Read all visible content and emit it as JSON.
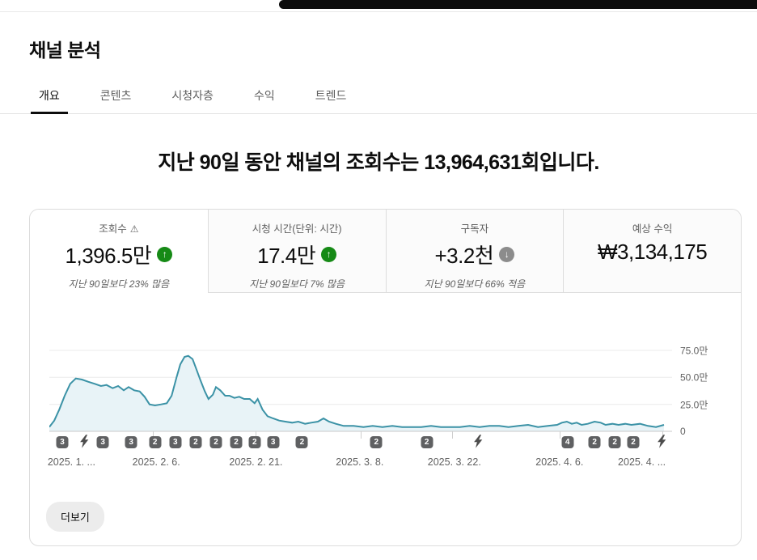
{
  "header": {
    "title": "채널 분석"
  },
  "tabs": [
    {
      "label": "개요",
      "active": true
    },
    {
      "label": "콘텐츠",
      "active": false
    },
    {
      "label": "시청자층",
      "active": false
    },
    {
      "label": "수익",
      "active": false
    },
    {
      "label": "트렌드",
      "active": false
    }
  ],
  "headline": "지난 90일 동안 채널의 조회수는 13,964,631회입니다.",
  "metrics": [
    {
      "label": "조회수",
      "has_warning": true,
      "value": "1,396.5만",
      "trend": "up",
      "subtitle": "지난 90일보다 23% 많음",
      "selected": true
    },
    {
      "label": "시청 시간(단위: 시간)",
      "has_warning": false,
      "value": "17.4만",
      "trend": "up",
      "subtitle": "지난 90일보다 7% 많음",
      "selected": false
    },
    {
      "label": "구독자",
      "has_warning": false,
      "value": "+3.2천",
      "trend": "down",
      "subtitle": "지난 90일보다 66% 적음",
      "selected": false
    },
    {
      "label": "예상 수익",
      "has_warning": false,
      "value": "₩3,134,175",
      "trend": "none",
      "subtitle": "",
      "selected": false
    }
  ],
  "card": {
    "see_more_label": "더보기"
  },
  "chart_data": {
    "type": "area",
    "series_name": "조회수",
    "unit": "만 (10,000 views)",
    "line_color": "#3b92a6",
    "fill_color": "#e8f3f7",
    "grid_color": "#ebebeb",
    "baseline_color": "#c8c8c8",
    "y_axis_range_man": [
      0,
      80
    ],
    "y_ticks": [
      {
        "label": "75.0만",
        "value": 75
      },
      {
        "label": "50.0만",
        "value": 50
      },
      {
        "label": "25.0만",
        "value": 25
      },
      {
        "label": "0",
        "value": 0
      }
    ],
    "x_ticks": [
      {
        "label": "2025. 1. ...",
        "pos": 0.036
      },
      {
        "label": "2025. 2. 6.",
        "pos": 0.174
      },
      {
        "label": "2025. 2. 21.",
        "pos": 0.336
      },
      {
        "label": "2025. 3. 8.",
        "pos": 0.505
      },
      {
        "label": "2025. 3. 22.",
        "pos": 0.659
      },
      {
        "label": "2025. 4. 6.",
        "pos": 0.83
      },
      {
        "label": "2025. 4. ...",
        "pos": 0.964
      }
    ],
    "x_tick_marks": [
      0.168,
      0.336,
      0.507,
      0.655,
      0.83,
      0.997
    ],
    "points": [
      [
        0.0,
        4
      ],
      [
        0.008,
        10
      ],
      [
        0.016,
        20
      ],
      [
        0.025,
        33
      ],
      [
        0.034,
        44
      ],
      [
        0.043,
        49
      ],
      [
        0.053,
        48
      ],
      [
        0.063,
        46
      ],
      [
        0.074,
        44
      ],
      [
        0.084,
        42
      ],
      [
        0.093,
        43
      ],
      [
        0.103,
        40
      ],
      [
        0.112,
        42
      ],
      [
        0.121,
        38
      ],
      [
        0.129,
        41
      ],
      [
        0.138,
        38
      ],
      [
        0.147,
        37
      ],
      [
        0.155,
        32
      ],
      [
        0.163,
        25
      ],
      [
        0.172,
        24
      ],
      [
        0.182,
        25
      ],
      [
        0.191,
        26
      ],
      [
        0.199,
        33
      ],
      [
        0.207,
        50
      ],
      [
        0.213,
        62
      ],
      [
        0.22,
        69
      ],
      [
        0.226,
        70
      ],
      [
        0.233,
        67
      ],
      [
        0.239,
        58
      ],
      [
        0.246,
        47
      ],
      [
        0.253,
        37
      ],
      [
        0.259,
        30
      ],
      [
        0.266,
        34
      ],
      [
        0.271,
        41
      ],
      [
        0.278,
        38
      ],
      [
        0.286,
        33
      ],
      [
        0.293,
        33
      ],
      [
        0.301,
        31
      ],
      [
        0.309,
        32
      ],
      [
        0.317,
        30
      ],
      [
        0.326,
        30
      ],
      [
        0.334,
        26
      ],
      [
        0.339,
        30
      ],
      [
        0.347,
        20
      ],
      [
        0.355,
        14
      ],
      [
        0.364,
        12
      ],
      [
        0.374,
        10
      ],
      [
        0.384,
        9
      ],
      [
        0.395,
        8
      ],
      [
        0.405,
        9
      ],
      [
        0.416,
        7
      ],
      [
        0.426,
        8
      ],
      [
        0.437,
        9
      ],
      [
        0.446,
        12
      ],
      [
        0.455,
        9
      ],
      [
        0.466,
        7
      ],
      [
        0.479,
        5
      ],
      [
        0.495,
        5
      ],
      [
        0.511,
        4
      ],
      [
        0.526,
        5
      ],
      [
        0.542,
        4
      ],
      [
        0.558,
        5
      ],
      [
        0.574,
        4
      ],
      [
        0.589,
        4
      ],
      [
        0.605,
        4
      ],
      [
        0.621,
        5
      ],
      [
        0.637,
        4
      ],
      [
        0.653,
        4
      ],
      [
        0.668,
        4
      ],
      [
        0.684,
        5
      ],
      [
        0.7,
        4
      ],
      [
        0.716,
        5
      ],
      [
        0.732,
        5
      ],
      [
        0.747,
        4
      ],
      [
        0.763,
        5
      ],
      [
        0.779,
        6
      ],
      [
        0.795,
        4
      ],
      [
        0.811,
        5
      ],
      [
        0.826,
        6
      ],
      [
        0.834,
        8
      ],
      [
        0.842,
        9
      ],
      [
        0.85,
        7
      ],
      [
        0.858,
        8
      ],
      [
        0.866,
        6
      ],
      [
        0.876,
        7
      ],
      [
        0.887,
        9
      ],
      [
        0.897,
        8
      ],
      [
        0.905,
        6
      ],
      [
        0.916,
        7
      ],
      [
        0.926,
        6
      ],
      [
        0.937,
        7
      ],
      [
        0.947,
        6
      ],
      [
        0.961,
        7
      ],
      [
        0.974,
        5
      ],
      [
        0.987,
        4
      ],
      [
        1.0,
        6
      ]
    ],
    "video_markers": [
      {
        "pos": 0.021,
        "type": "count",
        "label": "3"
      },
      {
        "pos": 0.057,
        "type": "shorts",
        "label": ""
      },
      {
        "pos": 0.087,
        "type": "count",
        "label": "3"
      },
      {
        "pos": 0.133,
        "type": "count",
        "label": "3"
      },
      {
        "pos": 0.172,
        "type": "count",
        "label": "2"
      },
      {
        "pos": 0.205,
        "type": "count",
        "label": "3"
      },
      {
        "pos": 0.238,
        "type": "count",
        "label": "2"
      },
      {
        "pos": 0.271,
        "type": "count",
        "label": "2"
      },
      {
        "pos": 0.304,
        "type": "count",
        "label": "2"
      },
      {
        "pos": 0.334,
        "type": "count",
        "label": "2"
      },
      {
        "pos": 0.364,
        "type": "count",
        "label": "3"
      },
      {
        "pos": 0.411,
        "type": "count",
        "label": "2"
      },
      {
        "pos": 0.532,
        "type": "count",
        "label": "2"
      },
      {
        "pos": 0.614,
        "type": "count",
        "label": "2"
      },
      {
        "pos": 0.697,
        "type": "shorts",
        "label": ""
      },
      {
        "pos": 0.843,
        "type": "count",
        "label": "4"
      },
      {
        "pos": 0.887,
        "type": "count",
        "label": "2"
      },
      {
        "pos": 0.92,
        "type": "count",
        "label": "2"
      },
      {
        "pos": 0.95,
        "type": "count",
        "label": "2"
      },
      {
        "pos": 0.996,
        "type": "shorts",
        "label": ""
      }
    ]
  }
}
